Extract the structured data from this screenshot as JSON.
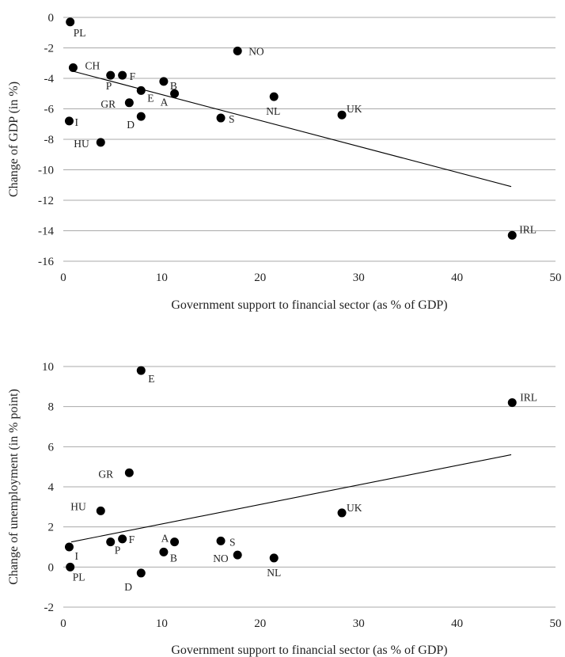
{
  "chart_data": [
    {
      "type": "scatter",
      "title": "",
      "xlabel": "Government support to financial sector (as % of GDP)",
      "ylabel": "Change of GDP (in %)",
      "xlim": [
        0,
        50
      ],
      "ylim": [
        -16,
        0
      ],
      "xticks": [
        "0",
        "10",
        "20",
        "30",
        "40",
        "50"
      ],
      "yticks": [
        "-16",
        "-14",
        "-12",
        "-10",
        "-8",
        "-6",
        "-4",
        "-2",
        "0"
      ],
      "grid": "horizontal",
      "trendline": {
        "x": [
          0.8,
          45.5
        ],
        "y": [
          -3.5,
          -11.1
        ]
      },
      "points": [
        {
          "label": "PL",
          "x": 0.7,
          "y": -0.3
        },
        {
          "label": "CH",
          "x": 1.0,
          "y": -3.3
        },
        {
          "label": "I",
          "x": 0.6,
          "y": -6.8
        },
        {
          "label": "HU",
          "x": 3.8,
          "y": -8.2
        },
        {
          "label": "P",
          "x": 4.8,
          "y": -3.8
        },
        {
          "label": "F",
          "x": 6.0,
          "y": -3.8
        },
        {
          "label": "GR",
          "x": 6.7,
          "y": -5.6
        },
        {
          "label": "E",
          "x": 7.9,
          "y": -4.8
        },
        {
          "label": "D",
          "x": 7.9,
          "y": -6.5
        },
        {
          "label": "B",
          "x": 10.2,
          "y": -4.2
        },
        {
          "label": "A",
          "x": 11.3,
          "y": -5.0
        },
        {
          "label": "S",
          "x": 16.0,
          "y": -6.6
        },
        {
          "label": "NO",
          "x": 17.7,
          "y": -2.2
        },
        {
          "label": "NL",
          "x": 21.4,
          "y": -5.2
        },
        {
          "label": "UK",
          "x": 28.3,
          "y": -6.4
        },
        {
          "label": "IRL",
          "x": 45.6,
          "y": -14.3
        }
      ]
    },
    {
      "type": "scatter",
      "title": "",
      "xlabel": "Government support to financial sector (as % of GDP)",
      "ylabel": "Change of unemployment (in % point)",
      "xlim": [
        0,
        50
      ],
      "ylim": [
        -2,
        10
      ],
      "xticks": [
        "0",
        "10",
        "20",
        "30",
        "40",
        "50"
      ],
      "yticks": [
        "-2",
        "0",
        "2",
        "4",
        "6",
        "8",
        "10"
      ],
      "grid": "horizontal",
      "trendline": {
        "x": [
          0.8,
          45.5
        ],
        "y": [
          1.25,
          5.6
        ]
      },
      "points": [
        {
          "label": "E",
          "x": 7.9,
          "y": 9.8
        },
        {
          "label": "IRL",
          "x": 45.6,
          "y": 8.2
        },
        {
          "label": "GR",
          "x": 6.7,
          "y": 4.7
        },
        {
          "label": "HU",
          "x": 3.8,
          "y": 2.8
        },
        {
          "label": "UK",
          "x": 28.3,
          "y": 2.7
        },
        {
          "label": "I",
          "x": 0.6,
          "y": 1.0
        },
        {
          "label": "P",
          "x": 4.8,
          "y": 1.25
        },
        {
          "label": "F",
          "x": 6.0,
          "y": 1.4
        },
        {
          "label": "A",
          "x": 11.3,
          "y": 1.25
        },
        {
          "label": "S",
          "x": 16.0,
          "y": 1.3
        },
        {
          "label": "B",
          "x": 10.2,
          "y": 0.75
        },
        {
          "label": "NO",
          "x": 17.7,
          "y": 0.6
        },
        {
          "label": "NL",
          "x": 21.4,
          "y": 0.45
        },
        {
          "label": "PL",
          "x": 0.7,
          "y": 0.0
        },
        {
          "label": "D",
          "x": 7.9,
          "y": -0.3
        }
      ]
    }
  ]
}
